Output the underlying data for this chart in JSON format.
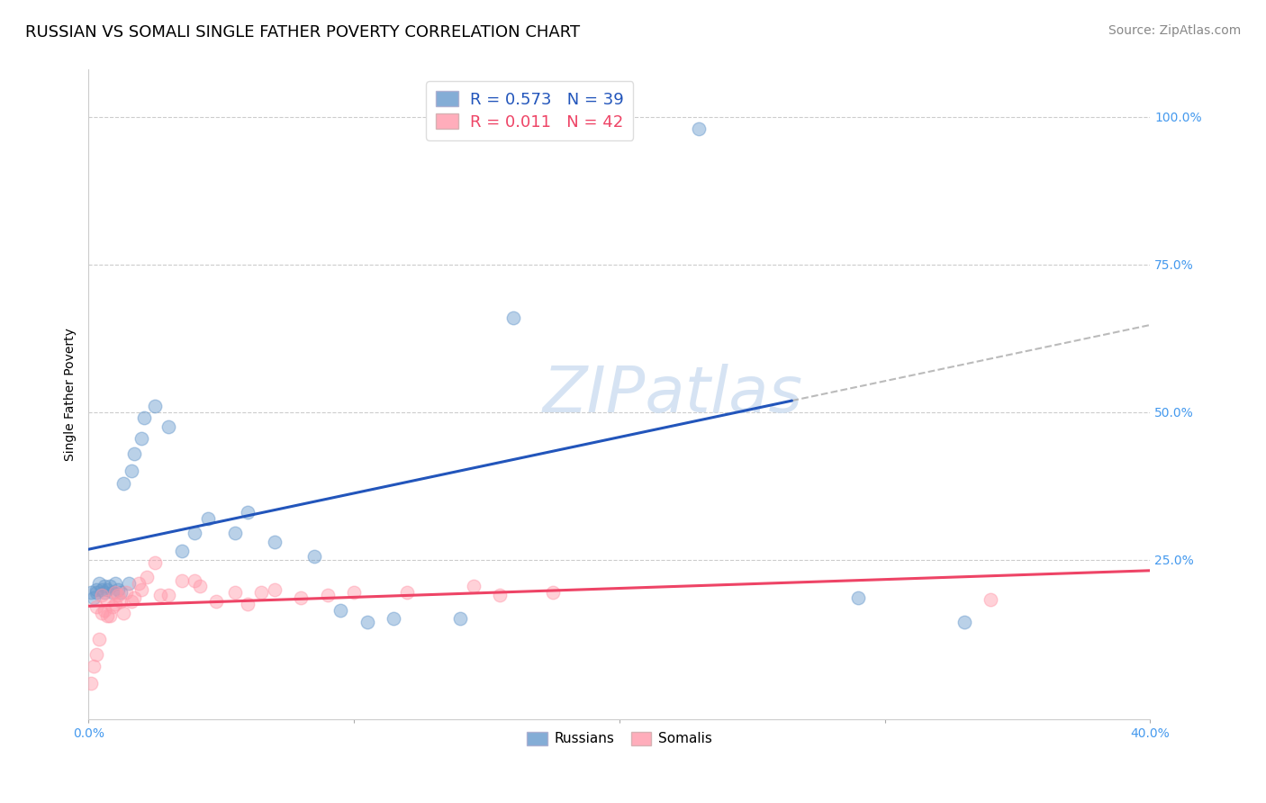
{
  "title": "RUSSIAN VS SOMALI SINGLE FATHER POVERTY CORRELATION CHART",
  "source": "Source: ZipAtlas.com",
  "ylabel": "Single Father Poverty",
  "watermark": "ZIPatlas",
  "xlim": [
    0.0,
    0.4
  ],
  "ylim": [
    -0.02,
    1.08
  ],
  "ytick_labels": [
    "100.0%",
    "75.0%",
    "50.0%",
    "25.0%"
  ],
  "ytick_positions": [
    1.0,
    0.75,
    0.5,
    0.25
  ],
  "russian_R": 0.573,
  "russian_N": 39,
  "somali_R": 0.011,
  "somali_N": 42,
  "russian_color": "#6699CC",
  "somali_color": "#FF99AA",
  "russian_line_color": "#2255BB",
  "somali_line_color": "#EE4466",
  "grid_color": "#CCCCCC",
  "background_color": "#FFFFFF",
  "russian_x": [
    0.001,
    0.002,
    0.003,
    0.003,
    0.004,
    0.005,
    0.006,
    0.006,
    0.007,
    0.008,
    0.009,
    0.01,
    0.011,
    0.012,
    0.013,
    0.015,
    0.016,
    0.017,
    0.02,
    0.021,
    0.025,
    0.03,
    0.035,
    0.04,
    0.045,
    0.055,
    0.06,
    0.07,
    0.085,
    0.095,
    0.105,
    0.115,
    0.14,
    0.16,
    0.17,
    0.175,
    0.23,
    0.29,
    0.33
  ],
  "russian_y": [
    0.195,
    0.185,
    0.2,
    0.195,
    0.21,
    0.2,
    0.195,
    0.205,
    0.2,
    0.205,
    0.195,
    0.21,
    0.2,
    0.195,
    0.38,
    0.21,
    0.4,
    0.43,
    0.455,
    0.49,
    0.51,
    0.475,
    0.265,
    0.295,
    0.32,
    0.295,
    0.33,
    0.28,
    0.255,
    0.165,
    0.145,
    0.15,
    0.15,
    0.66,
    1.0,
    1.0,
    0.98,
    0.185,
    0.145
  ],
  "somali_x": [
    0.001,
    0.002,
    0.003,
    0.003,
    0.004,
    0.005,
    0.005,
    0.006,
    0.007,
    0.007,
    0.008,
    0.009,
    0.01,
    0.01,
    0.011,
    0.012,
    0.013,
    0.014,
    0.016,
    0.017,
    0.019,
    0.02,
    0.022,
    0.025,
    0.027,
    0.03,
    0.035,
    0.04,
    0.042,
    0.048,
    0.055,
    0.06,
    0.065,
    0.07,
    0.08,
    0.09,
    0.1,
    0.12,
    0.145,
    0.155,
    0.175,
    0.34
  ],
  "somali_y": [
    0.04,
    0.07,
    0.09,
    0.17,
    0.115,
    0.16,
    0.19,
    0.165,
    0.155,
    0.18,
    0.155,
    0.17,
    0.175,
    0.195,
    0.19,
    0.18,
    0.16,
    0.195,
    0.18,
    0.185,
    0.21,
    0.2,
    0.22,
    0.245,
    0.19,
    0.19,
    0.215,
    0.215,
    0.205,
    0.18,
    0.195,
    0.175,
    0.195,
    0.2,
    0.185,
    0.19,
    0.195,
    0.195,
    0.205,
    0.19,
    0.195,
    0.182
  ],
  "title_fontsize": 13,
  "axis_label_fontsize": 10,
  "tick_fontsize": 10,
  "legend_fontsize": 13,
  "source_fontsize": 10,
  "marker_size": 110,
  "line_width": 2.2,
  "alpha_scatter": 0.45,
  "solid_line_end": 0.265,
  "dashed_line_start": 0.265
}
